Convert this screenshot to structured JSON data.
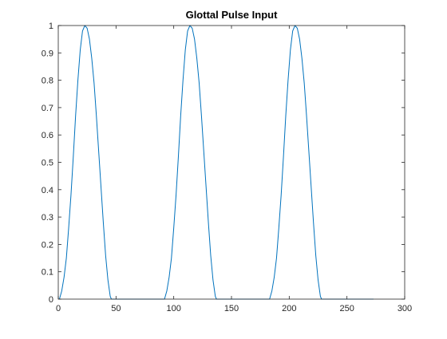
{
  "chart_data": {
    "type": "line",
    "title": "Glottal Pulse Input",
    "xlabel": "",
    "ylabel": "",
    "xlim": [
      0,
      300
    ],
    "ylim": [
      0,
      1
    ],
    "x_ticks": [
      0,
      50,
      100,
      150,
      200,
      250,
      300
    ],
    "y_ticks": [
      0,
      0.1,
      0.2,
      0.3,
      0.4,
      0.5,
      0.6,
      0.7,
      0.8,
      0.9,
      1
    ],
    "grid": false,
    "series_color": "#0072BD",
    "series": [
      {
        "x": [
          1,
          3,
          5,
          7,
          9,
          11,
          13,
          15,
          17,
          19,
          21,
          23,
          25,
          27,
          29,
          31,
          33,
          35,
          37,
          39,
          41,
          43,
          45,
          46,
          60,
          80,
          92,
          94,
          96,
          98,
          100,
          102,
          104,
          106,
          108,
          110,
          112,
          114,
          116,
          118,
          120,
          122,
          124,
          126,
          128,
          130,
          132,
          134,
          136,
          137,
          150,
          170,
          183,
          185,
          187,
          189,
          191,
          193,
          195,
          197,
          199,
          201,
          203,
          205,
          207,
          209,
          211,
          213,
          215,
          217,
          219,
          221,
          223,
          225,
          227,
          228,
          240,
          255,
          273
        ],
        "y": [
          0,
          0.03,
          0.08,
          0.15,
          0.26,
          0.38,
          0.52,
          0.67,
          0.8,
          0.91,
          0.98,
          1.0,
          0.99,
          0.95,
          0.88,
          0.79,
          0.67,
          0.54,
          0.41,
          0.28,
          0.16,
          0.07,
          0.01,
          0,
          0,
          0,
          0,
          0.03,
          0.08,
          0.15,
          0.26,
          0.38,
          0.52,
          0.67,
          0.8,
          0.91,
          0.98,
          1.0,
          0.99,
          0.95,
          0.88,
          0.79,
          0.67,
          0.54,
          0.41,
          0.28,
          0.16,
          0.07,
          0.01,
          0,
          0,
          0,
          0,
          0.03,
          0.08,
          0.15,
          0.26,
          0.38,
          0.52,
          0.67,
          0.8,
          0.91,
          0.98,
          1.0,
          0.99,
          0.95,
          0.88,
          0.79,
          0.67,
          0.54,
          0.41,
          0.28,
          0.16,
          0.07,
          0.01,
          0,
          0,
          0,
          0
        ]
      }
    ]
  }
}
